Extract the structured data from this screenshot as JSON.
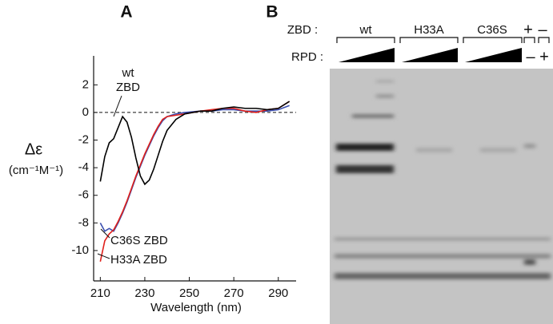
{
  "chart_data": {
    "type": "line",
    "panel_label": "A",
    "x_label": "Wavelength (nm)",
    "y_label": "Δε",
    "y_unit_label": "(cm⁻¹M⁻¹)",
    "x": [
      210,
      212,
      214,
      216,
      218,
      220,
      222,
      224,
      226,
      228,
      230,
      232,
      234,
      236,
      238,
      240,
      244,
      248,
      255,
      260,
      265,
      270,
      275,
      280,
      285,
      290,
      295
    ],
    "series": [
      {
        "name": "wt ZBD",
        "color": "#000000",
        "values": [
          -5,
          -3.2,
          -2.2,
          -1.9,
          -1.1,
          -0.3,
          -0.7,
          -1.8,
          -3.3,
          -4.6,
          -5.2,
          -4.9,
          -4.1,
          -3.1,
          -2.1,
          -1.3,
          -0.5,
          -0.1,
          0.1,
          0.1,
          0.3,
          0.4,
          0.3,
          0.3,
          0.2,
          0.3,
          0.8
        ]
      },
      {
        "name": "C36S ZBD",
        "color": "#3b4fb0",
        "values": [
          -8,
          -8.6,
          -8.4,
          -8.6,
          -8.0,
          -7.3,
          -6.5,
          -5.6,
          -4.7,
          -3.9,
          -3.1,
          -2.4,
          -1.7,
          -1.1,
          -0.6,
          -0.3,
          -0.1,
          0,
          0.1,
          0.1,
          0.2,
          0.2,
          0.1,
          0.1,
          0.1,
          0.2,
          0.5
        ]
      },
      {
        "name": "H33A ZBD",
        "color": "#e0201b",
        "values": [
          -10.8,
          -9.3,
          -8.8,
          -8.5,
          -7.9,
          -7.2,
          -6.4,
          -5.5,
          -4.6,
          -3.8,
          -3.0,
          -2.3,
          -1.6,
          -1.0,
          -0.5,
          -0.3,
          -0.2,
          -0.1,
          0.1,
          0.2,
          0.3,
          0.3,
          0.1,
          0,
          0.2,
          0.3,
          0.8
        ]
      }
    ],
    "annotations": [
      "wt",
      "ZBD",
      "C36S ZBD",
      "H33A ZBD"
    ],
    "xlim": [
      207,
      298
    ],
    "xticks": [
      210,
      230,
      250,
      270,
      290
    ],
    "ylim": [
      -12.2,
      4.1
    ],
    "yticks": [
      -10,
      -8,
      -6,
      -4,
      -2,
      0,
      2
    ],
    "zero_line": true
  },
  "gel": {
    "panel_label": "B",
    "zbd_label": "ZBD :",
    "rpd_label": "RPD :",
    "groups": [
      "wt",
      "H33A",
      "C36S"
    ],
    "control_zbd": [
      "+",
      "–"
    ],
    "control_rpd": [
      "–",
      "+"
    ]
  }
}
